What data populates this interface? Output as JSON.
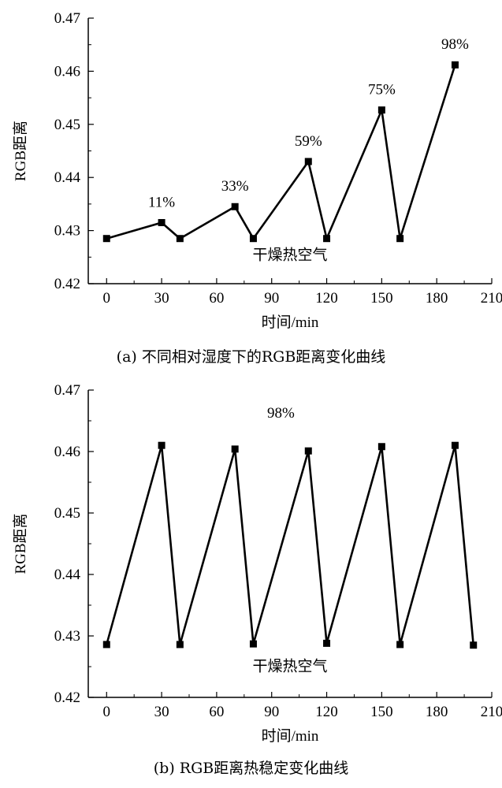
{
  "chart_data": [
    {
      "type": "line",
      "caption": "(a) 不同相对湿度下的RGB距离变化曲线",
      "xlabel": "时间/min",
      "ylabel": "RGB距离",
      "xlim": [
        -10,
        210
      ],
      "ylim": [
        0.42,
        0.47
      ],
      "xticks": [
        0,
        30,
        60,
        90,
        120,
        150,
        180,
        210
      ],
      "yticks": [
        0.42,
        0.43,
        0.44,
        0.45,
        0.46,
        0.47
      ],
      "series": [
        {
          "x": [
            0,
            30,
            40,
            70,
            80,
            110,
            120,
            150,
            160,
            190
          ],
          "values": [
            0.4285,
            0.4315,
            0.4285,
            0.4345,
            0.4285,
            0.443,
            0.4285,
            0.4527,
            0.4285,
            0.4612
          ]
        }
      ],
      "annotations": [
        {
          "text": "11%",
          "x": 30,
          "y": 0.4345
        },
        {
          "text": "33%",
          "x": 70,
          "y": 0.4375
        },
        {
          "text": "59%",
          "x": 110,
          "y": 0.446
        },
        {
          "text": "75%",
          "x": 150,
          "y": 0.4557
        },
        {
          "text": "98%",
          "x": 190,
          "y": 0.4642
        },
        {
          "text": "干燥热空气",
          "x": 100,
          "y": 0.4245
        }
      ],
      "marker": "square",
      "color": "#000000"
    },
    {
      "type": "line",
      "caption": "(b) RGB距离热稳定变化曲线",
      "xlabel": "时间/min",
      "ylabel": "RGB距离",
      "xlim": [
        -10,
        210
      ],
      "ylim": [
        0.42,
        0.47
      ],
      "xticks": [
        0,
        30,
        60,
        90,
        120,
        150,
        180,
        210
      ],
      "yticks": [
        0.42,
        0.43,
        0.44,
        0.45,
        0.46,
        0.47
      ],
      "series": [
        {
          "x": [
            0,
            30,
            40,
            70,
            80,
            110,
            120,
            150,
            160,
            190,
            200
          ],
          "values": [
            0.4286,
            0.461,
            0.4286,
            0.4604,
            0.4287,
            0.4601,
            0.4288,
            0.4608,
            0.4286,
            0.461,
            0.4285
          ]
        }
      ],
      "annotations": [
        {
          "text": "98%",
          "x": 95,
          "y": 0.4655
        },
        {
          "text": "干燥热空气",
          "x": 100,
          "y": 0.4243
        }
      ],
      "marker": "square",
      "color": "#000000"
    }
  ]
}
